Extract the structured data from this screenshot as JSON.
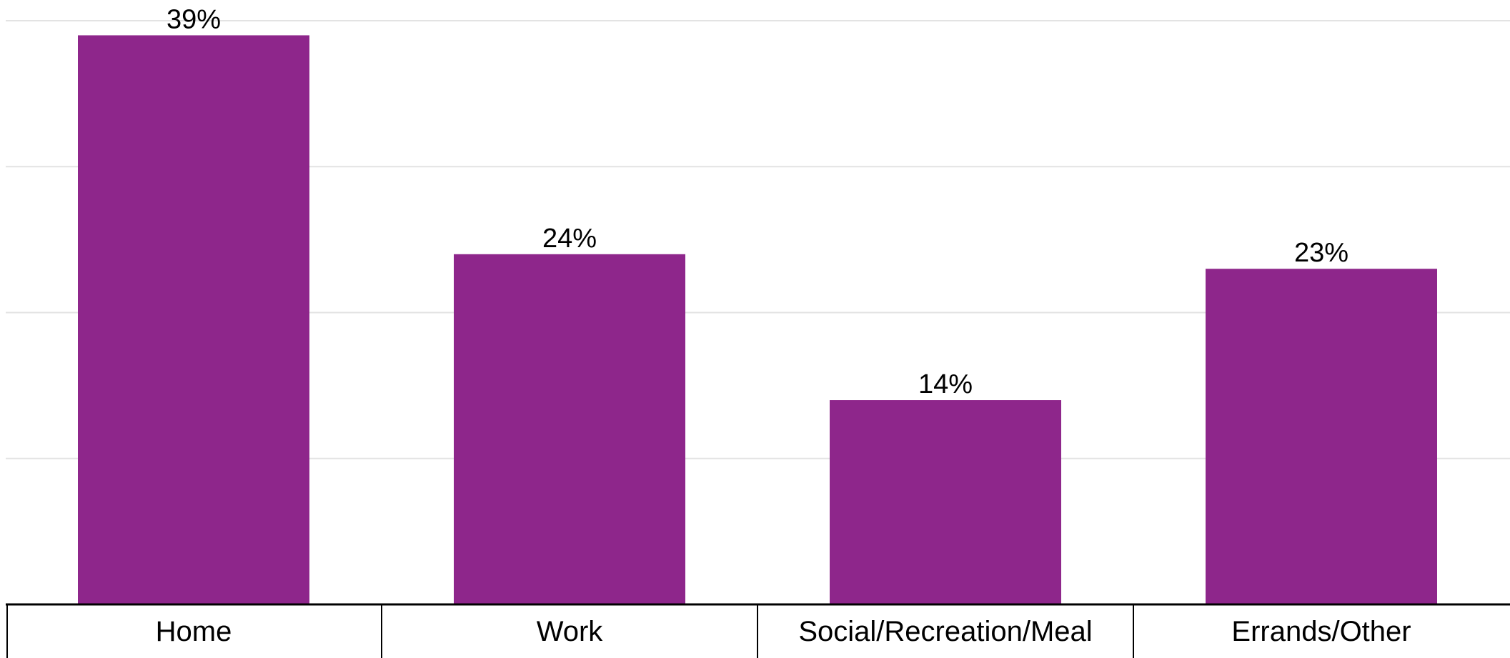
{
  "chart_data": {
    "type": "bar",
    "categories": [
      "Home",
      "Work",
      "Social/Recreation/Meal",
      "Errands/Other"
    ],
    "values": [
      39,
      24,
      14,
      23
    ],
    "data_labels": [
      "39%",
      "24%",
      "14%",
      "23%"
    ],
    "title": "",
    "xlabel": "",
    "ylabel": "",
    "ylim": [
      0,
      40
    ],
    "y_gridlines": [
      10,
      20,
      30,
      40
    ],
    "grid": true,
    "legend": "none",
    "bar_color": "#8e268b"
  }
}
